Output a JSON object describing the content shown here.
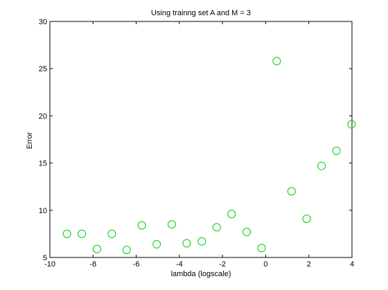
{
  "chart_data": {
    "type": "scatter",
    "title": "Using trainng set A and M = 3",
    "xlabel": "lambda (logscale)",
    "ylabel": "Error",
    "xlim": [
      -10,
      4
    ],
    "ylim": [
      5,
      30
    ],
    "xticks": [
      -10,
      -8,
      -6,
      -4,
      -2,
      0,
      2,
      4
    ],
    "yticks": [
      5,
      10,
      15,
      20,
      25,
      30
    ],
    "grid": false,
    "marker": "circle",
    "marker_color": "#00cc00",
    "points": [
      {
        "x": -9.21,
        "y": 7.5
      },
      {
        "x": -8.52,
        "y": 7.5
      },
      {
        "x": -7.82,
        "y": 5.9
      },
      {
        "x": -7.13,
        "y": 7.5
      },
      {
        "x": -6.44,
        "y": 5.8
      },
      {
        "x": -5.74,
        "y": 8.4
      },
      {
        "x": -5.05,
        "y": 6.4
      },
      {
        "x": -4.35,
        "y": 8.5
      },
      {
        "x": -3.66,
        "y": 6.5
      },
      {
        "x": -2.96,
        "y": 6.7
      },
      {
        "x": -2.27,
        "y": 8.2
      },
      {
        "x": -1.58,
        "y": 9.6
      },
      {
        "x": -0.88,
        "y": 7.7
      },
      {
        "x": -0.19,
        "y": 6.0
      },
      {
        "x": 0.51,
        "y": 25.8
      },
      {
        "x": 1.2,
        "y": 12.0
      },
      {
        "x": 1.9,
        "y": 9.1
      },
      {
        "x": 2.59,
        "y": 14.7
      },
      {
        "x": 3.28,
        "y": 16.3
      },
      {
        "x": 3.98,
        "y": 19.1
      }
    ]
  }
}
